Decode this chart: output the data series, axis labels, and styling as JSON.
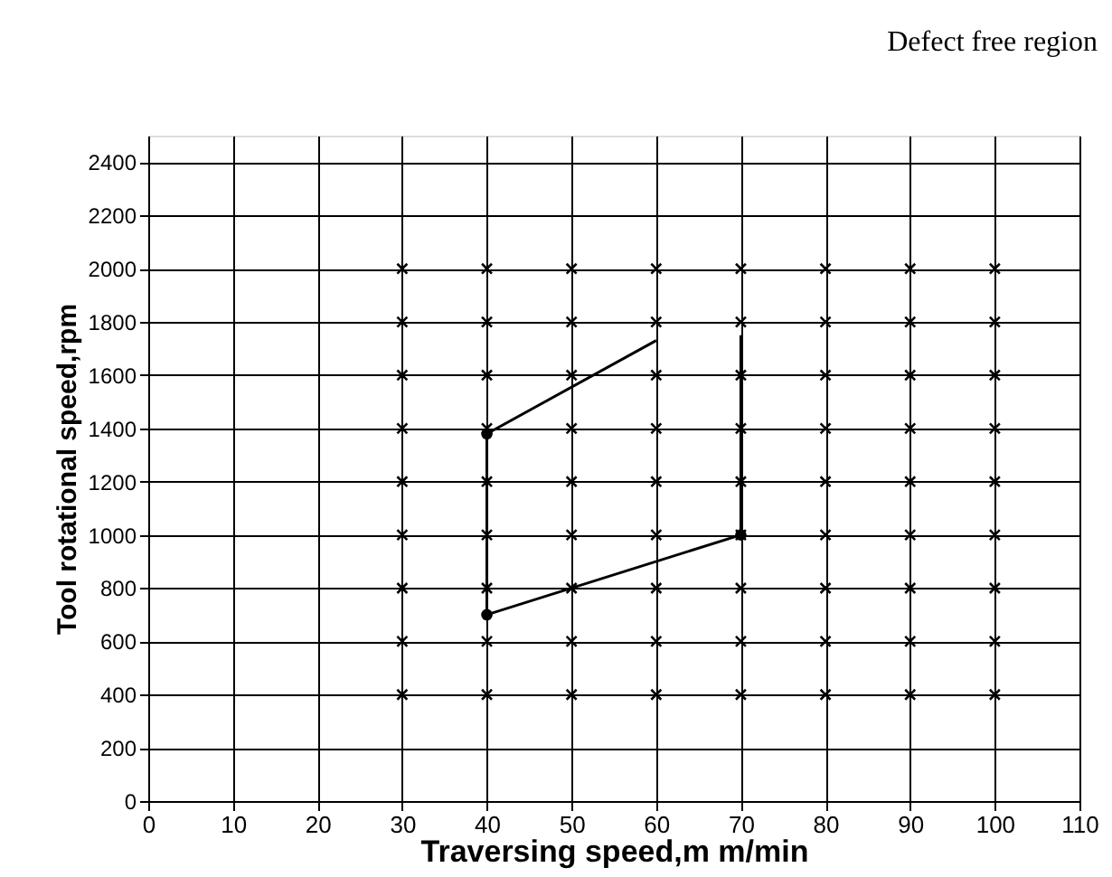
{
  "chart_data": {
    "type": "scatter",
    "xlabel": "Traversing speed,m m/min",
    "ylabel": "Tool rotational speed,rpm",
    "annotations": [
      "Defect free region"
    ],
    "xlim": [
      0,
      110
    ],
    "xticks": [
      0,
      10,
      20,
      30,
      40,
      50,
      60,
      70,
      80,
      90,
      100,
      110
    ],
    "ylim": [
      0,
      2500
    ],
    "yticks": [
      0,
      200,
      400,
      600,
      800,
      1000,
      1200,
      1400,
      1600,
      1800,
      2000,
      2200,
      2400
    ],
    "grid": true,
    "series": [
      {
        "marker": "cross",
        "color": "#000000",
        "x": [
          30,
          30,
          30,
          30,
          30,
          30,
          30,
          30,
          30,
          40,
          40,
          40,
          40,
          40,
          40,
          40,
          40,
          40,
          50,
          50,
          50,
          50,
          50,
          50,
          50,
          50,
          50,
          60,
          60,
          60,
          60,
          60,
          60,
          60,
          60,
          60,
          70,
          70,
          70,
          70,
          70,
          70,
          70,
          70,
          70,
          80,
          80,
          80,
          80,
          80,
          80,
          80,
          80,
          80,
          90,
          90,
          90,
          90,
          90,
          90,
          90,
          90,
          90,
          100,
          100,
          100,
          100,
          100,
          100,
          100,
          100,
          100
        ],
        "values": [
          400,
          600,
          800,
          1000,
          1200,
          1400,
          1600,
          1800,
          2000,
          400,
          600,
          800,
          1000,
          1200,
          1400,
          1600,
          1800,
          2000,
          400,
          600,
          800,
          1000,
          1200,
          1400,
          1600,
          1800,
          2000,
          400,
          600,
          800,
          1000,
          1200,
          1400,
          1600,
          1800,
          2000,
          400,
          600,
          800,
          1000,
          1200,
          1400,
          1600,
          1800,
          2000,
          400,
          600,
          800,
          1000,
          1200,
          1400,
          1600,
          1800,
          2000,
          400,
          600,
          800,
          1000,
          1200,
          1400,
          1600,
          1800,
          2000,
          400,
          600,
          800,
          1000,
          1200,
          1400,
          1600,
          1800,
          2000
        ]
      },
      {
        "type": "line",
        "marker": "none",
        "color": "#000000",
        "x": [
          70,
          40,
          40,
          60
        ],
        "values": [
          1000,
          700,
          1380,
          1730
        ]
      },
      {
        "type": "line",
        "marker": "none",
        "color": "#000000",
        "x": [
          70,
          70
        ],
        "values": [
          1000,
          1750
        ]
      },
      {
        "marker": "circle",
        "color": "#000000",
        "x": [
          40,
          40,
          70
        ],
        "values": [
          700,
          1380,
          1000
        ]
      }
    ]
  }
}
